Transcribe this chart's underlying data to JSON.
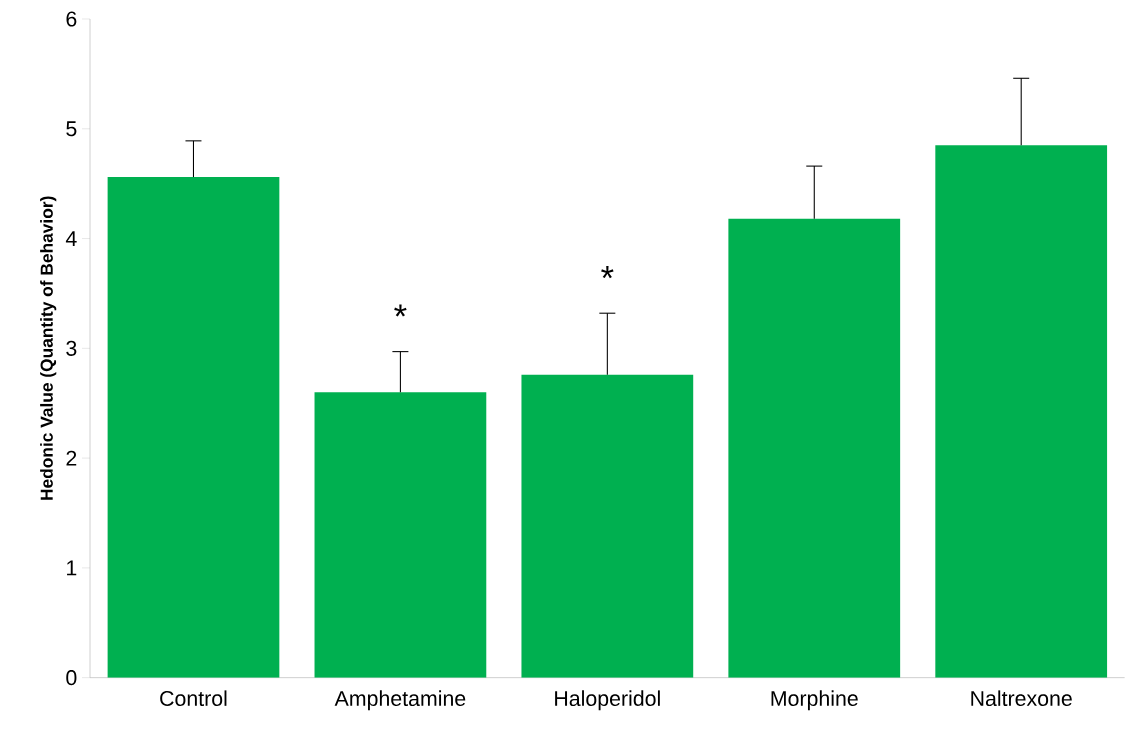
{
  "chart_data": {
    "type": "bar",
    "ylabel": "Hedonic Value (Quantity of Behavior)",
    "categories": [
      "Control",
      "Amphetamine",
      "Haloperidol",
      "Morphine",
      "Naltrexone"
    ],
    "values": [
      4.56,
      2.6,
      2.76,
      4.18,
      4.85
    ],
    "errors": [
      [
        4.56,
        4.89
      ],
      [
        2.6,
        2.97
      ],
      [
        2.76,
        3.32
      ],
      [
        4.18,
        4.66
      ],
      [
        4.85,
        5.46
      ]
    ],
    "color": "#00b050",
    "ylim": [
      0,
      6
    ],
    "yticks": [
      0,
      1,
      2,
      3,
      4,
      5,
      6
    ],
    "grid": false,
    "annotations": [
      {
        "text": "*",
        "x": "Amphetamine",
        "y": 2.97
      },
      {
        "text": "*",
        "x": "Haloperidol",
        "y": 3.32
      }
    ]
  }
}
